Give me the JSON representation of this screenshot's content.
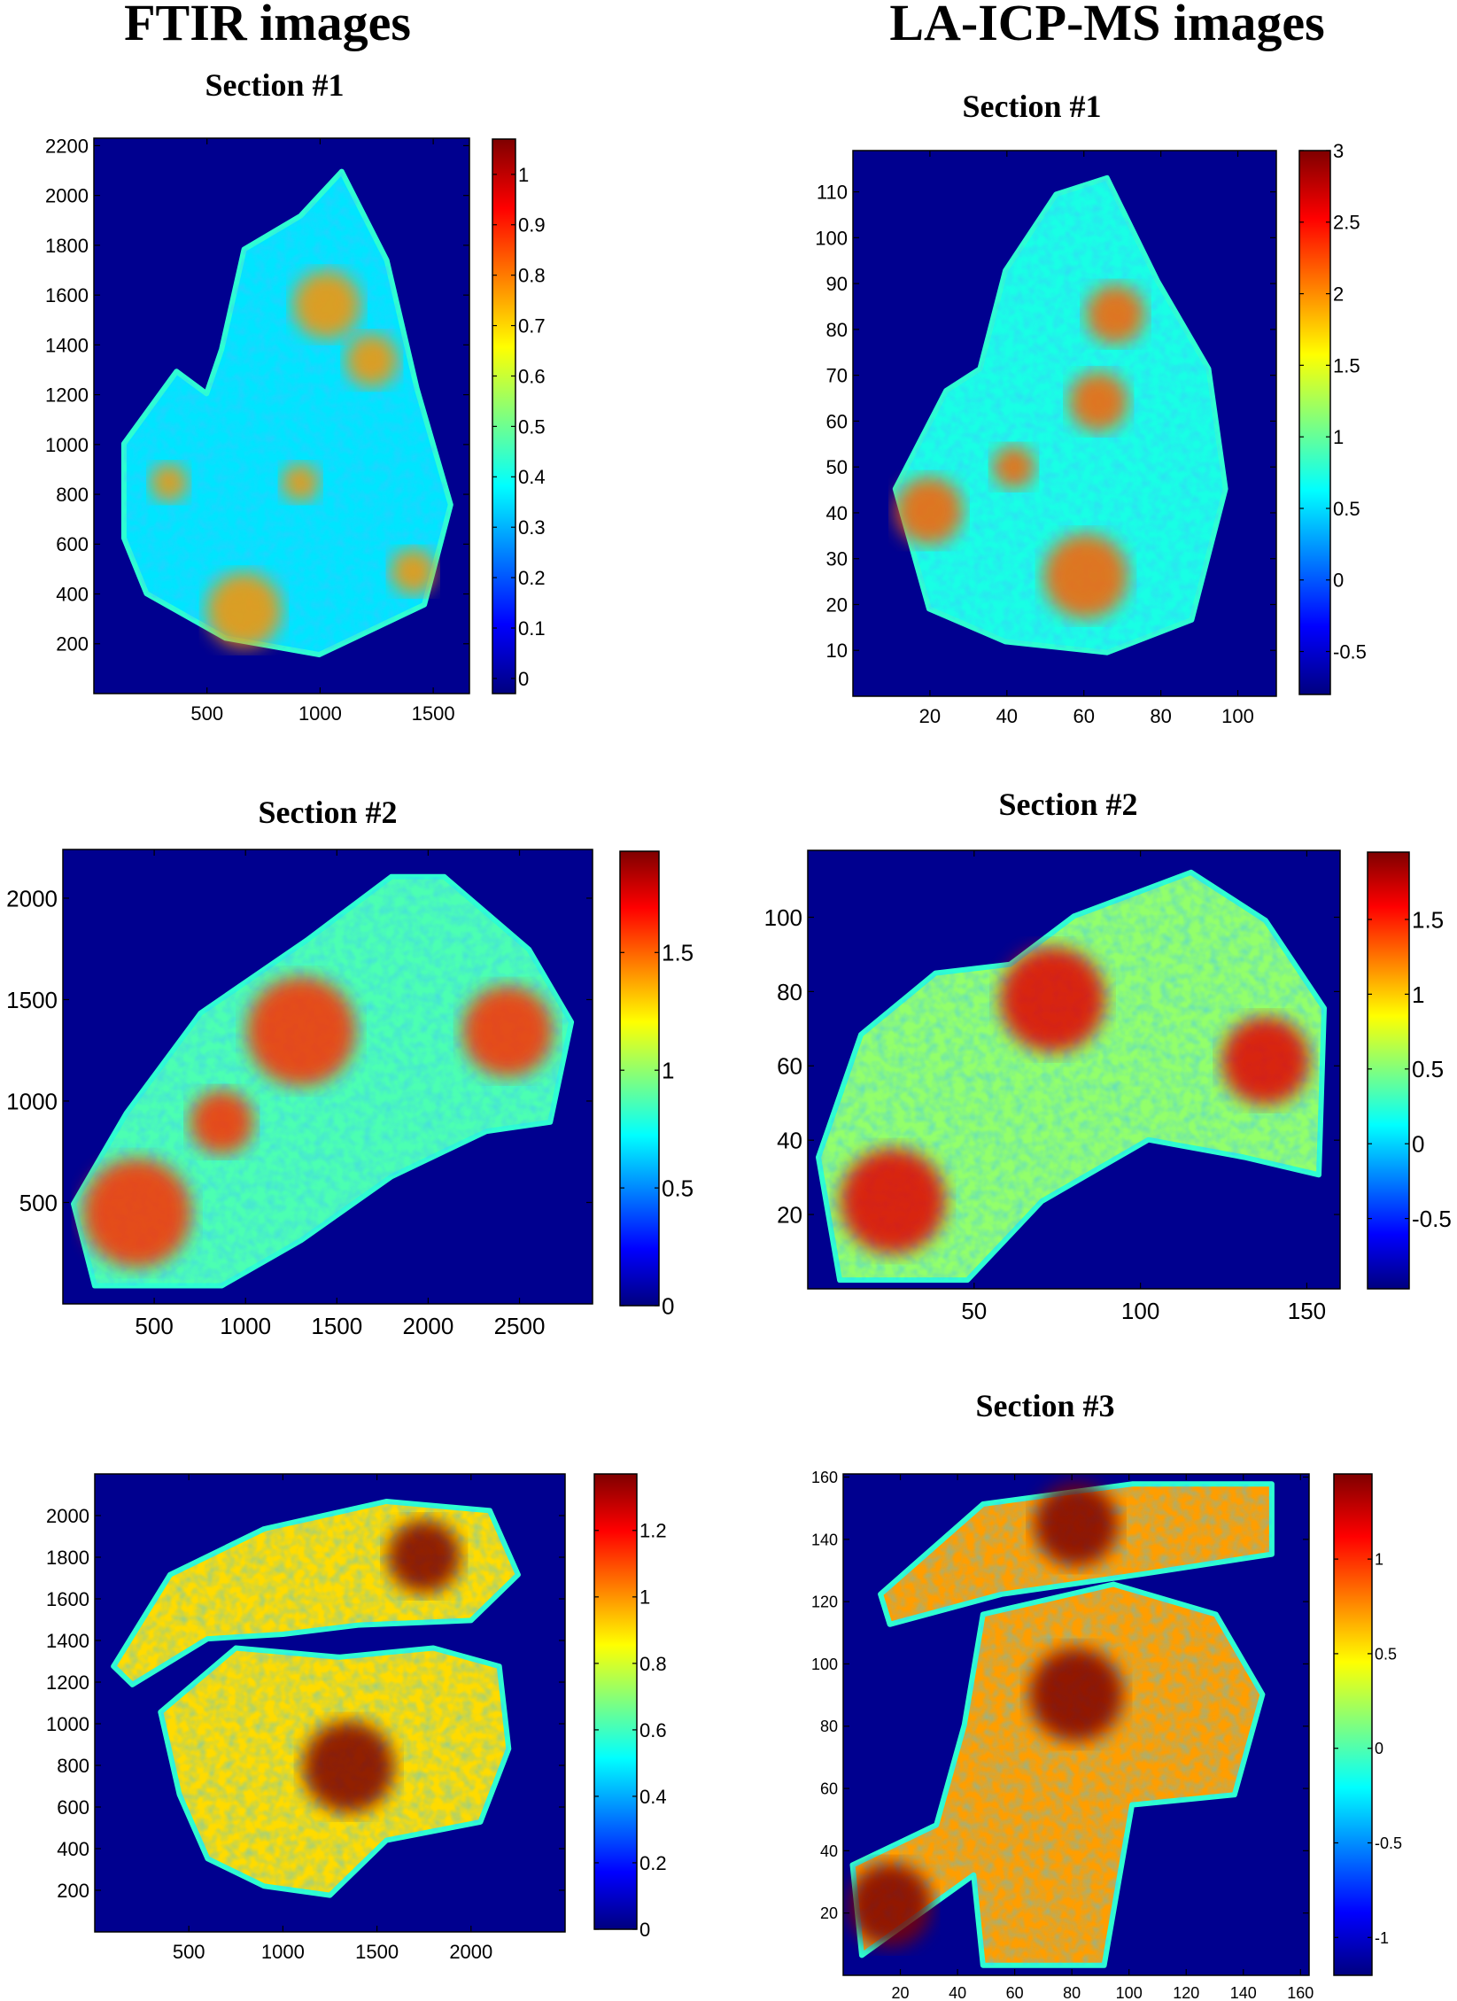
{
  "headings": {
    "ftir": "FTIR images",
    "laicpms": "LA-ICP-MS images"
  },
  "section_titles": {
    "ftir_1": "Section #1",
    "ftir_2": "Section #2",
    "la_1": "Section #1",
    "la_2": "Section #2",
    "la_3": "Section #3"
  },
  "colors": {
    "background": "#00008f",
    "colormap": "jet",
    "colormap_stops": [
      "#00007f",
      "#0000ff",
      "#007fff",
      "#00ffff",
      "#7fff7f",
      "#ffff00",
      "#ff7f00",
      "#ff0000",
      "#7f0000"
    ]
  },
  "chart_data": [
    {
      "type": "heatmap",
      "name": "ftir-section-1",
      "title": "Section #1",
      "colormap": "jet",
      "xlim": [
        0,
        1660
      ],
      "ylim": [
        0,
        2230
      ],
      "x_ticks": [
        500,
        1000,
        1500
      ],
      "y_ticks": [
        200,
        400,
        600,
        800,
        1000,
        1200,
        1400,
        1600,
        1800,
        2000,
        2200
      ],
      "colorbar": {
        "range": [
          -0.03,
          1.07
        ],
        "ticks": [
          0,
          0.1,
          0.2,
          0.3,
          0.4,
          0.5,
          0.6,
          0.7,
          0.8,
          0.9,
          1
        ],
        "tick_labels": [
          "0",
          "0.1",
          "0.2",
          "0.3",
          "0.4",
          "0.5",
          "0.6",
          "0.7",
          "0.8",
          "0.9",
          "1"
        ]
      }
    },
    {
      "type": "heatmap",
      "name": "la-icp-ms-section-1",
      "title": "Section #1",
      "colormap": "jet",
      "xlim": [
        0,
        110
      ],
      "ylim": [
        0,
        119
      ],
      "x_ticks": [
        20,
        40,
        60,
        80,
        100
      ],
      "y_ticks": [
        10,
        20,
        30,
        40,
        50,
        60,
        70,
        80,
        90,
        100,
        110
      ],
      "colorbar": {
        "range": [
          -0.8,
          3
        ],
        "ticks": [
          -0.5,
          0,
          0.5,
          1,
          1.5,
          2,
          2.5,
          3
        ],
        "tick_labels": [
          "-0.5",
          "0",
          "0.5",
          "1",
          "1.5",
          "2",
          "2.5",
          "3"
        ]
      }
    },
    {
      "type": "heatmap",
      "name": "ftir-section-2",
      "title": "Section #2",
      "colormap": "jet",
      "xlim": [
        0,
        2900
      ],
      "ylim": [
        0,
        2240
      ],
      "x_ticks": [
        500,
        1000,
        1500,
        2000,
        2500
      ],
      "y_ticks": [
        500,
        1000,
        1500,
        2000
      ],
      "colorbar": {
        "range": [
          0,
          1.93
        ],
        "ticks": [
          0,
          0.5,
          1,
          1.5
        ],
        "tick_labels": [
          "0",
          "0.5",
          "1",
          "1.5"
        ]
      }
    },
    {
      "type": "heatmap",
      "name": "la-icp-ms-section-2",
      "title": "Section #2",
      "colormap": "jet",
      "xlim": [
        0,
        160
      ],
      "ylim": [
        0,
        118
      ],
      "x_ticks": [
        50,
        100,
        150
      ],
      "y_ticks": [
        20,
        40,
        60,
        80,
        100
      ],
      "colorbar": {
        "range": [
          -0.97,
          1.95
        ],
        "ticks": [
          -0.5,
          0,
          0.5,
          1,
          1.5
        ],
        "tick_labels": [
          "-0.5",
          "0",
          "0.5",
          "1",
          "1.5"
        ]
      }
    },
    {
      "type": "heatmap",
      "name": "ftir-section-3",
      "title": "",
      "colormap": "jet",
      "xlim": [
        0,
        2500
      ],
      "ylim": [
        0,
        2200
      ],
      "x_ticks": [
        500,
        1000,
        1500,
        2000
      ],
      "y_ticks": [
        200,
        400,
        600,
        800,
        1000,
        1200,
        1400,
        1600,
        1800,
        2000
      ],
      "colorbar": {
        "range": [
          0,
          1.37
        ],
        "ticks": [
          0,
          0.2,
          0.4,
          0.6,
          0.8,
          1,
          1.2
        ],
        "tick_labels": [
          "0",
          "0.2",
          "0.4",
          "0.6",
          "0.8",
          "1",
          "1.2"
        ]
      }
    },
    {
      "type": "heatmap",
      "name": "la-icp-ms-section-3",
      "title": "Section #3",
      "colormap": "jet",
      "xlim": [
        0,
        163
      ],
      "ylim": [
        0,
        161
      ],
      "x_ticks": [
        20,
        40,
        60,
        80,
        100,
        120,
        140,
        160
      ],
      "y_ticks": [
        20,
        40,
        60,
        80,
        100,
        120,
        140,
        160
      ],
      "colorbar": {
        "range": [
          -1.2,
          1.45
        ],
        "ticks": [
          -1,
          -0.5,
          0,
          0.5,
          1
        ],
        "tick_labels": [
          "-1",
          "-0.5",
          "0",
          "0.5",
          "1"
        ]
      }
    }
  ]
}
